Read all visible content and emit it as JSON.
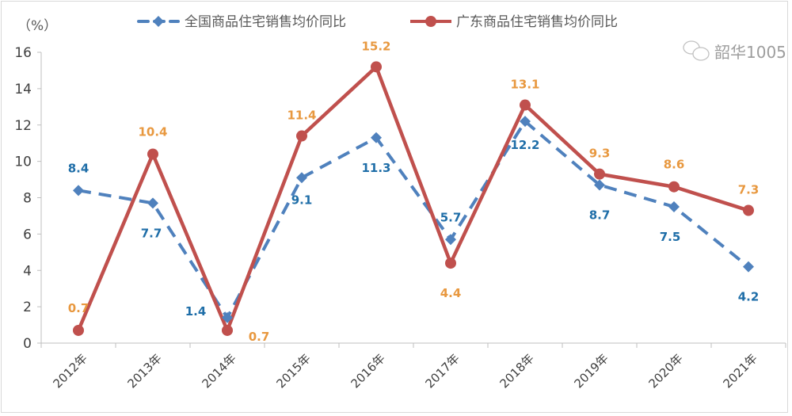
{
  "chart_data": {
    "type": "line",
    "ylabel": "（%）",
    "ylim": [
      0,
      16
    ],
    "yticks": [
      0,
      2,
      4,
      6,
      8,
      10,
      12,
      14,
      16
    ],
    "grid": false,
    "legend_position": "top",
    "categories": [
      "2012年",
      "2013年",
      "2014年",
      "2015年",
      "2016年",
      "2017年",
      "2018年",
      "2019年",
      "2020年",
      "2021年"
    ],
    "series": [
      {
        "name": "全国商品住宅销售均价同比",
        "color": "#4f81bd",
        "label_color": "#1f6ea8",
        "style": "dashed",
        "marker": "diamond",
        "values": [
          8.4,
          7.7,
          1.4,
          9.1,
          11.3,
          5.7,
          12.2,
          8.7,
          7.5,
          4.2
        ]
      },
      {
        "name": "广东商品住宅销售均价同比",
        "color": "#c0504d",
        "label_color": "#e8983f",
        "style": "solid",
        "marker": "circle",
        "values": [
          0.7,
          10.4,
          0.7,
          11.4,
          15.2,
          4.4,
          13.1,
          9.3,
          8.6,
          7.3
        ]
      }
    ]
  },
  "watermark": "韶华1005"
}
